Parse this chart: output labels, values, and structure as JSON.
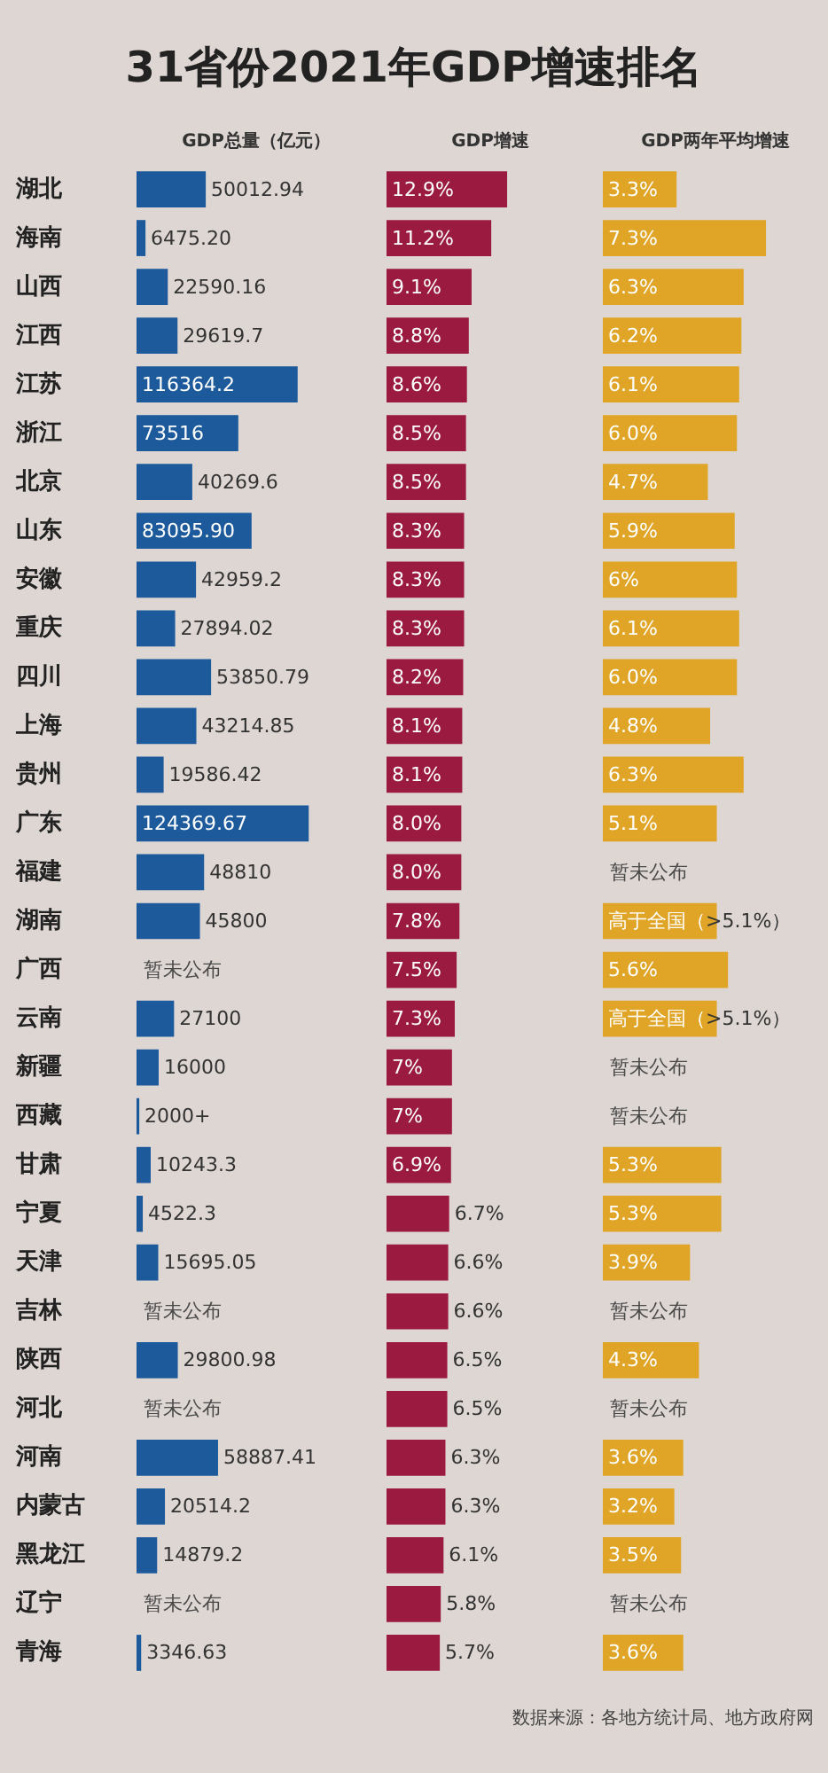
{
  "chart_data": [
    {
      "type": "bar",
      "orientation": "horizontal",
      "title": "31省份2021年GDP增速排名",
      "xlabel": "GDP总量（亿元）",
      "tick_labels": "y",
      "grid": false,
      "categories": [
        "湖北",
        "海南",
        "山西",
        "江西",
        "江苏",
        "浙江",
        "北京",
        "山东",
        "安徽",
        "重庆",
        "四川",
        "上海",
        "贵州",
        "广东",
        "福建",
        "湖南",
        "广西",
        "云南",
        "新疆",
        "西藏",
        "甘肃",
        "宁夏",
        "天津",
        "吉林",
        "陕西",
        "河北",
        "河南",
        "内蒙古",
        "黑龙江",
        "辽宁",
        "青海"
      ],
      "series": [
        {
          "color": "#1d5a9b",
          "values": [
            50012.94,
            6475.2,
            22590.16,
            29619.7,
            116364.2,
            73516,
            40269.6,
            83095.9,
            42959.2,
            27894.02,
            53850.79,
            43214.85,
            19586.42,
            124369.67,
            48810,
            45800,
            null,
            27100,
            16000,
            2000,
            10243.3,
            4522.3,
            15695.05,
            null,
            29800.98,
            null,
            58887.41,
            20514.2,
            14879.2,
            null,
            3346.63
          ],
          "value_labels": [
            "50012.94",
            "6475.20",
            "22590.16",
            "29619.7",
            "116364.2",
            "73516",
            "40269.6",
            "83095.90",
            "42959.2",
            "27894.02",
            "53850.79",
            "43214.85",
            "19586.42",
            "124369.67",
            "48810",
            "45800",
            "暂未公布",
            "27100",
            "16000",
            "2000+",
            "10243.3",
            "4522.3",
            "15695.05",
            "暂未公布",
            "29800.98",
            "暂未公布",
            "58887.41",
            "20514.2",
            "14879.2",
            "暂未公布",
            "3346.63"
          ]
        }
      ]
    },
    {
      "type": "bar",
      "orientation": "horizontal",
      "xlabel": "GDP增速",
      "tick_labels": false,
      "grid": false,
      "series": [
        {
          "color": "#9b1a40",
          "values": [
            12.9,
            11.2,
            9.1,
            8.8,
            8.6,
            8.5,
            8.5,
            8.3,
            8.3,
            8.3,
            8.2,
            8.1,
            8.1,
            8.0,
            8.0,
            7.8,
            7.5,
            7.3,
            7,
            7,
            6.9,
            6.7,
            6.6,
            6.6,
            6.5,
            6.5,
            6.3,
            6.3,
            6.1,
            5.8,
            5.7
          ],
          "value_labels": [
            "12.9%",
            "11.2%",
            "9.1%",
            "8.8%",
            "8.6%",
            "8.5%",
            "8.5%",
            "8.3%",
            "8.3%",
            "8.3%",
            "8.2%",
            "8.1%",
            "8.1%",
            "8.0%",
            "8.0%",
            "7.8%",
            "7.5%",
            "7.3%",
            "7%",
            "7%",
            "6.9%",
            "6.7%",
            "6.6%",
            "6.6%",
            "6.5%",
            "6.5%",
            "6.3%",
            "6.3%",
            "6.1%",
            "5.8%",
            "5.7%"
          ]
        }
      ]
    },
    {
      "type": "bar",
      "orientation": "horizontal",
      "xlabel": "GDP两年平均增速",
      "tick_labels": false,
      "grid": false,
      "annotations": [
        "数据来源：各地方统计局、地方政府网"
      ],
      "series": [
        {
          "color": "#e0a526",
          "values": [
            3.3,
            7.3,
            6.3,
            6.2,
            6.1,
            6.0,
            4.7,
            5.9,
            6,
            6.1,
            6.0,
            4.8,
            6.3,
            5.1,
            null,
            5.1,
            5.6,
            5.1,
            null,
            null,
            5.3,
            5.3,
            3.9,
            null,
            4.3,
            null,
            3.6,
            3.2,
            3.5,
            null,
            3.6
          ],
          "value_labels": [
            "3.3%",
            "7.3%",
            "6.3%",
            "6.2%",
            "6.1%",
            "6.0%",
            "4.7%",
            "5.9%",
            "6%",
            "6.1%",
            "6.0%",
            "4.8%",
            "6.3%",
            "5.1%",
            "暂未公布",
            "高于全国（>5.1%）",
            "5.6%",
            "高于全国（>5.1%）",
            "暂未公布",
            "暂未公布",
            "5.3%",
            "5.3%",
            "3.9%",
            "暂未公布",
            "4.3%",
            "暂未公布",
            "3.6%",
            "3.2%",
            "3.5%",
            "暂未公布",
            "3.6%"
          ]
        }
      ]
    }
  ]
}
